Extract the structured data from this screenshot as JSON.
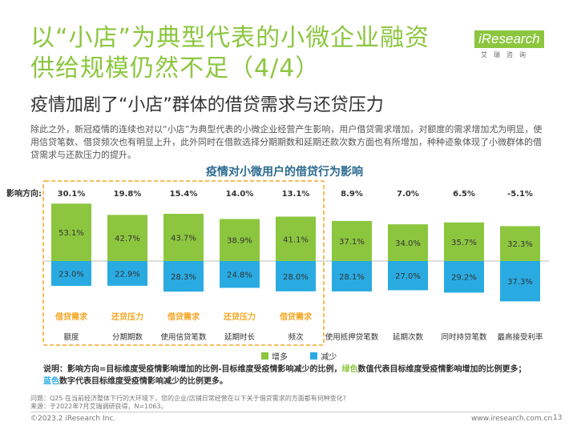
{
  "title": {
    "line1": "以“小店”为典型代表的小微企业融资",
    "line2": "供给规模仍然不足（4/4）"
  },
  "logo": {
    "text": "iResearch",
    "sub": "艾瑞咨询"
  },
  "subtitle": "疫情加剧了“小店”群体的借贷需求与还贷压力",
  "body": "除此之外，新冠疫情的连续也对以“小店”为典型代表的小微企业经营产生影响，用户借贷需求增加，对额度的需求增加尤为明显，使用信贷笔数、借贷频次也有明显上升，此外同时在借款选择分期期数和延期还款次数方面也有所增加，种种迹象体现了小微群体的借贷需求与还款压力的提升。",
  "colors": {
    "green": "#8cc63f",
    "blue": "#29abe2",
    "orange": "#f5a623"
  },
  "chart_data": {
    "type": "bar",
    "title": "疫情对小微用户的借贷行为影响",
    "direction_label": "影响方向:",
    "categories": [
      "额度",
      "分期期数",
      "使用信贷笔数",
      "延期时长",
      "频次",
      "使用抵押贷笔数",
      "延期次数",
      "同时持贷笔数",
      "最高接受利率"
    ],
    "direction": [
      "30.1%",
      "19.8%",
      "15.4%",
      "14.0%",
      "13.1%",
      "8.9%",
      "7.0%",
      "6.5%",
      "-5.1%"
    ],
    "series": [
      {
        "name": "增多",
        "color": "#8cc63f",
        "values": [
          53.1,
          42.7,
          43.7,
          38.9,
          41.1,
          37.1,
          34.0,
          35.7,
          32.3
        ]
      },
      {
        "name": "减少",
        "color": "#29abe2",
        "values": [
          23.0,
          22.9,
          28.3,
          24.8,
          28.0,
          28.1,
          27.0,
          29.2,
          37.3
        ]
      }
    ],
    "tags": [
      "借贷需求",
      "还贷压力",
      "借贷需求",
      "还贷压力",
      "借贷需求"
    ],
    "highlight_count": 5
  },
  "notes": {
    "line1_a": "说明：影响方向=目标维度受疫情影响增加的比例-目标维度受疫情影响减少的比例，",
    "line1_green": "绿色",
    "line1_b": "数值代表目标维度受疫情影响增加的比例更多；",
    "line2_blue": "蓝色",
    "line2_b": "数字代表目标维度受疫情影响减少的比例更多。"
  },
  "source": {
    "line1": "问题：Q25 在当前经济整体下行的大环境下，您的企业/店铺日常经营在以下关于借贷需求的方面都有何种变化?",
    "line2": "来源：于2022年7月艾瑞调研获得，N=1063。"
  },
  "footer": {
    "left": "©2023.2 iResearch Inc.",
    "right": "www.iresearch.com.cn",
    "page": "13"
  }
}
